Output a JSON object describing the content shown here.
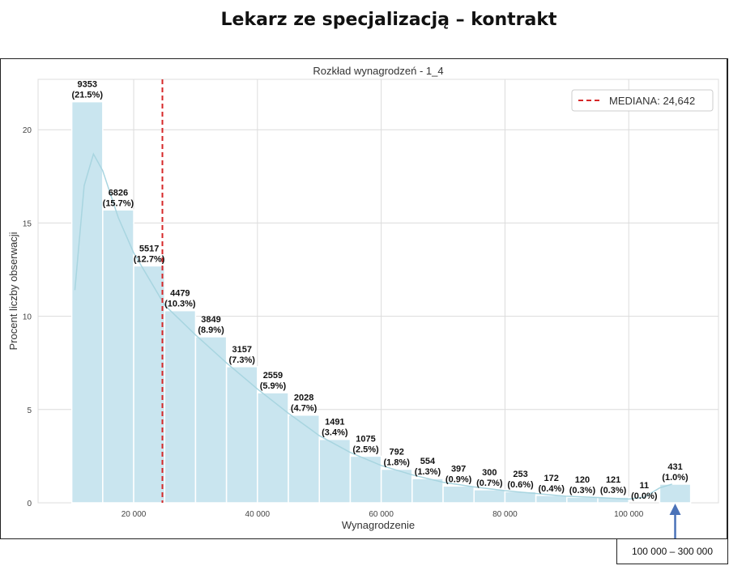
{
  "heading": "Lekarz ze specjalizacją – kontrakt",
  "annotation": "100 000 – 300 000",
  "chart_data": {
    "type": "bar",
    "title": "Rozkład wynagrodzeń - 1_4",
    "xlabel": "Wynagrodzenie",
    "ylabel": "Procent liczby obserwacji",
    "xlim": [
      4550,
      114500
    ],
    "ylim": [
      0,
      22.7
    ],
    "grid": true,
    "bin_width": 5000,
    "bin_starts": [
      10000,
      15000,
      20000,
      25000,
      30000,
      35000,
      40000,
      45000,
      50000,
      55000,
      60000,
      65000,
      70000,
      75000,
      80000,
      85000,
      90000,
      95000,
      100000,
      105000
    ],
    "counts": [
      9353,
      6826,
      5517,
      4479,
      3849,
      3157,
      2559,
      2028,
      1491,
      1075,
      792,
      554,
      397,
      300,
      253,
      172,
      120,
      121,
      11,
      431
    ],
    "percents": [
      21.5,
      15.7,
      12.7,
      10.3,
      8.9,
      7.3,
      5.9,
      4.7,
      3.4,
      2.5,
      1.8,
      1.3,
      0.9,
      0.7,
      0.6,
      0.4,
      0.3,
      0.3,
      0.0,
      1.0
    ],
    "labels": [
      "9353\n(21.5%)",
      "6826\n(15.7%)",
      "5517\n(12.7%)",
      "4479\n(10.3%)",
      "3849\n(8.9%)",
      "3157\n(7.3%)",
      "2559\n(5.9%)",
      "2028\n(4.7%)",
      "1491\n(3.4%)",
      "1075\n(2.5%)",
      "792\n(1.8%)",
      "554\n(1.3%)",
      "397\n(0.9%)",
      "300\n(0.7%)",
      "253\n(0.6%)",
      "172\n(0.4%)",
      "120\n(0.3%)",
      "121\n(0.3%)",
      "11\n(0.0%)",
      "431\n(1.0%)"
    ],
    "xticks": [
      20000,
      40000,
      60000,
      80000,
      100000
    ],
    "xtick_labels": [
      "20 000",
      "40 000",
      "60 000",
      "80 000",
      "100 000"
    ],
    "yticks": [
      0,
      5,
      10,
      15,
      20
    ],
    "ytick_labels": [
      "0",
      "5",
      "10",
      "15",
      "20"
    ],
    "median": 24642,
    "legend": {
      "label": "MEDIANA: 24,642",
      "placement": "top-right"
    },
    "kde": [
      [
        10500,
        11.4
      ],
      [
        12000,
        17
      ],
      [
        13500,
        18.7
      ],
      [
        15000,
        17.8
      ],
      [
        17500,
        15.3
      ],
      [
        20000,
        13.4
      ],
      [
        22500,
        12
      ],
      [
        25000,
        10.6
      ],
      [
        27500,
        9.8
      ],
      [
        30000,
        9
      ],
      [
        35000,
        7.5
      ],
      [
        40000,
        6.1
      ],
      [
        45000,
        4.8
      ],
      [
        50000,
        3.6
      ],
      [
        55000,
        2.7
      ],
      [
        60000,
        2.0
      ],
      [
        65000,
        1.5
      ],
      [
        70000,
        1.1
      ],
      [
        75000,
        0.85
      ],
      [
        80000,
        0.65
      ],
      [
        85000,
        0.5
      ],
      [
        90000,
        0.35
      ],
      [
        95000,
        0.28
      ],
      [
        100000,
        0.2
      ],
      [
        102500,
        0.3
      ],
      [
        105000,
        0.8
      ],
      [
        107000,
        1.0
      ]
    ],
    "colors": {
      "bar": "#c9e5ef",
      "kde": "#a8d5e0",
      "median": "#d62728",
      "arrow": "#4a72b8"
    }
  }
}
